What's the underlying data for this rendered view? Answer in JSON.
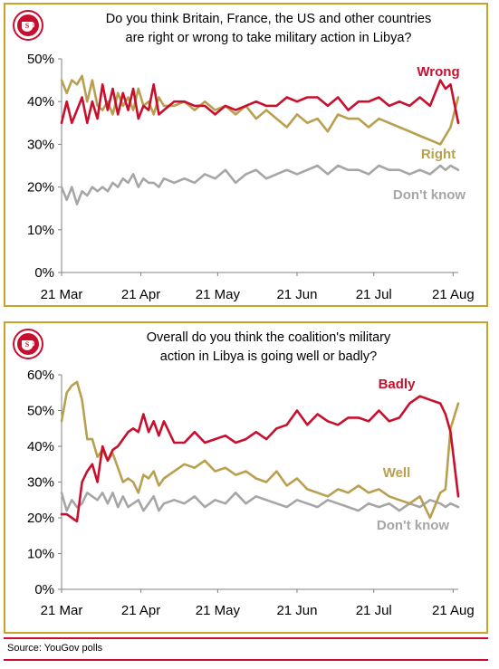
{
  "colors": {
    "border": "#c9a227",
    "red": "#c8102e",
    "gold": "#b8a050",
    "gray": "#a6a6a6",
    "accent_line": "#c8102e"
  },
  "logo": {
    "icon": "yougov-teacup-logo",
    "letter": "S"
  },
  "source": "Source: YouGov polls",
  "chart_data": [
    {
      "type": "line",
      "title": "Do you think Britain, France, the US and other countries are right or wrong to take military action in Libya?",
      "title_lines": [
        "Do you think Britain, France, the US and other countries",
        "are right or wrong to take military action in Libya?"
      ],
      "x_ticks": [
        "21 Mar",
        "21 Apr",
        "21 May",
        "21 Jun",
        "21 Jul",
        "21 Aug"
      ],
      "y_ticks": [
        "0%",
        "10%",
        "20%",
        "30%",
        "40%",
        "50%"
      ],
      "ylim": [
        0,
        50
      ],
      "xlim": [
        0,
        155
      ],
      "grid": false,
      "series": [
        {
          "name": "Wrong",
          "color": "#c8102e",
          "x": [
            0,
            2,
            4,
            6,
            8,
            10,
            12,
            14,
            16,
            18,
            20,
            22,
            24,
            26,
            28,
            30,
            32,
            34,
            36,
            38,
            40,
            44,
            48,
            52,
            56,
            60,
            64,
            68,
            72,
            76,
            80,
            84,
            88,
            92,
            96,
            100,
            104,
            108,
            112,
            116,
            120,
            124,
            128,
            132,
            136,
            140,
            144,
            148,
            150,
            152,
            155
          ],
          "y": [
            35,
            40,
            35,
            38,
            41,
            35,
            40,
            36,
            44,
            38,
            43,
            37,
            42,
            38,
            43,
            36,
            39,
            38,
            44,
            37,
            38,
            40,
            40,
            39,
            39,
            37,
            39,
            38,
            39,
            40,
            39,
            39,
            41,
            40,
            41,
            41,
            39,
            41,
            38,
            40,
            40,
            41,
            39,
            40,
            39,
            41,
            39,
            45,
            43,
            44,
            35
          ]
        },
        {
          "name": "Right",
          "color": "#b8a050",
          "x": [
            0,
            2,
            4,
            6,
            8,
            10,
            12,
            14,
            16,
            18,
            20,
            22,
            24,
            26,
            28,
            30,
            32,
            34,
            36,
            38,
            40,
            44,
            48,
            52,
            56,
            60,
            64,
            68,
            72,
            76,
            80,
            84,
            88,
            92,
            96,
            100,
            104,
            108,
            112,
            116,
            120,
            124,
            128,
            132,
            136,
            140,
            144,
            148,
            150,
            152,
            155
          ],
          "y": [
            45,
            42,
            45,
            44,
            46,
            40,
            45,
            39,
            38,
            40,
            37,
            42,
            39,
            41,
            38,
            43,
            39,
            40,
            37,
            41,
            39,
            39,
            40,
            38,
            40,
            38,
            39,
            37,
            39,
            36,
            38,
            36,
            34,
            37,
            35,
            36,
            33,
            37,
            36,
            36,
            34,
            36,
            35,
            34,
            33,
            32,
            31,
            30,
            32,
            34,
            41
          ]
        },
        {
          "name": "Don't know",
          "color": "#a6a6a6",
          "x": [
            0,
            2,
            4,
            6,
            8,
            10,
            12,
            14,
            16,
            18,
            20,
            22,
            24,
            26,
            28,
            30,
            32,
            34,
            36,
            38,
            40,
            44,
            48,
            52,
            56,
            60,
            64,
            68,
            72,
            76,
            80,
            84,
            88,
            92,
            96,
            100,
            104,
            108,
            112,
            116,
            120,
            124,
            128,
            132,
            136,
            140,
            144,
            148,
            150,
            152,
            155
          ],
          "y": [
            20,
            17,
            20,
            16,
            19,
            18,
            20,
            19,
            20,
            19,
            21,
            20,
            22,
            21,
            23,
            20,
            22,
            21,
            21,
            20,
            22,
            21,
            22,
            21,
            23,
            22,
            24,
            21,
            23,
            24,
            22,
            23,
            24,
            23,
            24,
            25,
            23,
            25,
            24,
            24,
            23,
            25,
            24,
            24,
            23,
            24,
            23,
            25,
            24,
            25,
            24
          ]
        }
      ],
      "end_labels": [
        {
          "text": "Wrong",
          "series": "Wrong"
        },
        {
          "text": "Right",
          "series": "Right"
        },
        {
          "text": "Don't know",
          "series": "Don't know"
        }
      ]
    },
    {
      "type": "line",
      "title": "Overall do you think the coalition's military action in Libya is going well or badly?",
      "title_lines": [
        "Overall do you think the coalition's military",
        "action in Libya is going well or badly?"
      ],
      "x_ticks": [
        "21 Mar",
        "21 Apr",
        "21 May",
        "21 Jun",
        "21 Jul",
        "21 Aug"
      ],
      "y_ticks": [
        "0%",
        "10%",
        "20%",
        "30%",
        "40%",
        "50%",
        "60%"
      ],
      "ylim": [
        0,
        60
      ],
      "xlim": [
        0,
        155
      ],
      "grid": false,
      "series": [
        {
          "name": "Badly",
          "color": "#c8102e",
          "x": [
            0,
            2,
            4,
            6,
            8,
            10,
            12,
            14,
            16,
            18,
            20,
            22,
            24,
            26,
            28,
            30,
            32,
            34,
            36,
            38,
            40,
            44,
            48,
            52,
            56,
            60,
            64,
            68,
            72,
            76,
            80,
            84,
            88,
            92,
            96,
            100,
            104,
            108,
            112,
            116,
            120,
            124,
            128,
            132,
            136,
            140,
            144,
            148,
            150,
            152,
            155
          ],
          "y": [
            21,
            21,
            20,
            19,
            30,
            33,
            35,
            30,
            40,
            36,
            39,
            40,
            42,
            44,
            45,
            44,
            49,
            44,
            47,
            43,
            47,
            41,
            41,
            44,
            41,
            42,
            43,
            41,
            42,
            44,
            42,
            45,
            46,
            50,
            46,
            49,
            47,
            46,
            48,
            48,
            47,
            50,
            47,
            48,
            52,
            54,
            53,
            52,
            49,
            44,
            26
          ]
        },
        {
          "name": "Well",
          "color": "#b8a050",
          "x": [
            0,
            2,
            4,
            6,
            8,
            10,
            12,
            14,
            16,
            18,
            20,
            22,
            24,
            26,
            28,
            30,
            32,
            34,
            36,
            38,
            40,
            44,
            48,
            52,
            56,
            60,
            64,
            68,
            72,
            76,
            80,
            84,
            88,
            92,
            96,
            100,
            104,
            108,
            112,
            116,
            120,
            124,
            128,
            132,
            136,
            140,
            144,
            148,
            150,
            152,
            155
          ],
          "y": [
            47,
            55,
            57,
            58,
            53,
            42,
            42,
            37,
            39,
            36,
            38,
            34,
            30,
            31,
            30,
            27,
            32,
            31,
            33,
            29,
            31,
            33,
            35,
            34,
            36,
            33,
            34,
            32,
            33,
            31,
            30,
            33,
            29,
            31,
            28,
            27,
            26,
            28,
            27,
            29,
            27,
            28,
            26,
            25,
            24,
            26,
            20,
            27,
            28,
            45,
            52
          ]
        },
        {
          "name": "Don't know",
          "color": "#a6a6a6",
          "x": [
            0,
            2,
            4,
            6,
            8,
            10,
            12,
            14,
            16,
            18,
            20,
            22,
            24,
            26,
            28,
            30,
            32,
            34,
            36,
            38,
            40,
            44,
            48,
            52,
            56,
            60,
            64,
            68,
            72,
            76,
            80,
            84,
            88,
            92,
            96,
            100,
            104,
            108,
            112,
            116,
            120,
            124,
            128,
            132,
            136,
            140,
            144,
            148,
            150,
            152,
            155
          ],
          "y": [
            27,
            22,
            25,
            23,
            24,
            27,
            26,
            25,
            27,
            24,
            27,
            23,
            26,
            23,
            24,
            25,
            22,
            24,
            26,
            22,
            24,
            25,
            24,
            26,
            23,
            25,
            24,
            27,
            24,
            26,
            25,
            24,
            23,
            25,
            24,
            23,
            25,
            24,
            23,
            22,
            24,
            23,
            24,
            22,
            24,
            23,
            25,
            24,
            23,
            24,
            23
          ]
        }
      ],
      "end_labels": [
        {
          "text": "Badly",
          "series": "Badly"
        },
        {
          "text": "Well",
          "series": "Well"
        },
        {
          "text": "Don't know",
          "series": "Don't know"
        }
      ]
    }
  ]
}
